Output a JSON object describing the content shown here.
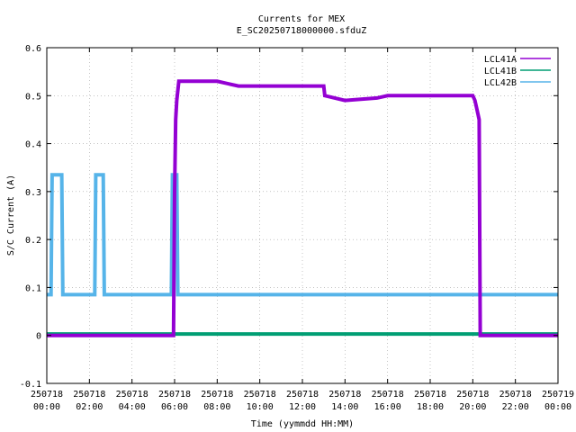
{
  "chart_data": {
    "type": "line",
    "title": "Currents for MEX",
    "subtitle": "E_SC20250718000000.sfduZ",
    "xlabel": "Time (yymmdd HH:MM)",
    "ylabel": "S/C Current (A)",
    "x_ticks": [
      {
        "date": "250718",
        "time": "00:00"
      },
      {
        "date": "250718",
        "time": "02:00"
      },
      {
        "date": "250718",
        "time": "04:00"
      },
      {
        "date": "250718",
        "time": "06:00"
      },
      {
        "date": "250718",
        "time": "08:00"
      },
      {
        "date": "250718",
        "time": "10:00"
      },
      {
        "date": "250718",
        "time": "12:00"
      },
      {
        "date": "250718",
        "time": "14:00"
      },
      {
        "date": "250718",
        "time": "16:00"
      },
      {
        "date": "250718",
        "time": "18:00"
      },
      {
        "date": "250718",
        "time": "20:00"
      },
      {
        "date": "250718",
        "time": "22:00"
      },
      {
        "date": "250719",
        "time": "00:00"
      }
    ],
    "y_ticks": [
      "-0.1",
      "0",
      "0.1",
      "0.2",
      "0.3",
      "0.4",
      "0.5",
      "0.6"
    ],
    "xlim_hours": [
      0,
      24
    ],
    "ylim": [
      -0.1,
      0.6
    ],
    "grid": true,
    "legend_position": "top-right",
    "series": [
      {
        "name": "LCL41A",
        "color": "#9400d3",
        "points": [
          [
            0,
            0.0
          ],
          [
            5.8,
            0.0
          ],
          [
            5.95,
            0.0
          ],
          [
            6.0,
            0.3
          ],
          [
            6.05,
            0.45
          ],
          [
            6.1,
            0.49
          ],
          [
            6.2,
            0.53
          ],
          [
            8.0,
            0.53
          ],
          [
            9.0,
            0.52
          ],
          [
            13.0,
            0.52
          ],
          [
            13.05,
            0.5
          ],
          [
            14.0,
            0.49
          ],
          [
            15.5,
            0.495
          ],
          [
            16.0,
            0.5
          ],
          [
            20.0,
            0.5
          ],
          [
            20.1,
            0.49
          ],
          [
            20.2,
            0.47
          ],
          [
            20.3,
            0.45
          ],
          [
            20.35,
            0.0
          ],
          [
            24,
            0.0
          ]
        ]
      },
      {
        "name": "LCL41B",
        "color": "#009e73",
        "points": [
          [
            0,
            0.003
          ],
          [
            24,
            0.003
          ]
        ]
      },
      {
        "name": "LCL42B",
        "color": "#56b4e9",
        "points": [
          [
            0,
            0.085
          ],
          [
            0.2,
            0.085
          ],
          [
            0.25,
            0.335
          ],
          [
            0.7,
            0.335
          ],
          [
            0.75,
            0.085
          ],
          [
            2.25,
            0.085
          ],
          [
            2.3,
            0.335
          ],
          [
            2.65,
            0.335
          ],
          [
            2.7,
            0.085
          ],
          [
            5.85,
            0.085
          ],
          [
            5.9,
            0.335
          ],
          [
            6.1,
            0.335
          ],
          [
            6.15,
            0.085
          ],
          [
            24,
            0.085
          ]
        ]
      }
    ]
  }
}
